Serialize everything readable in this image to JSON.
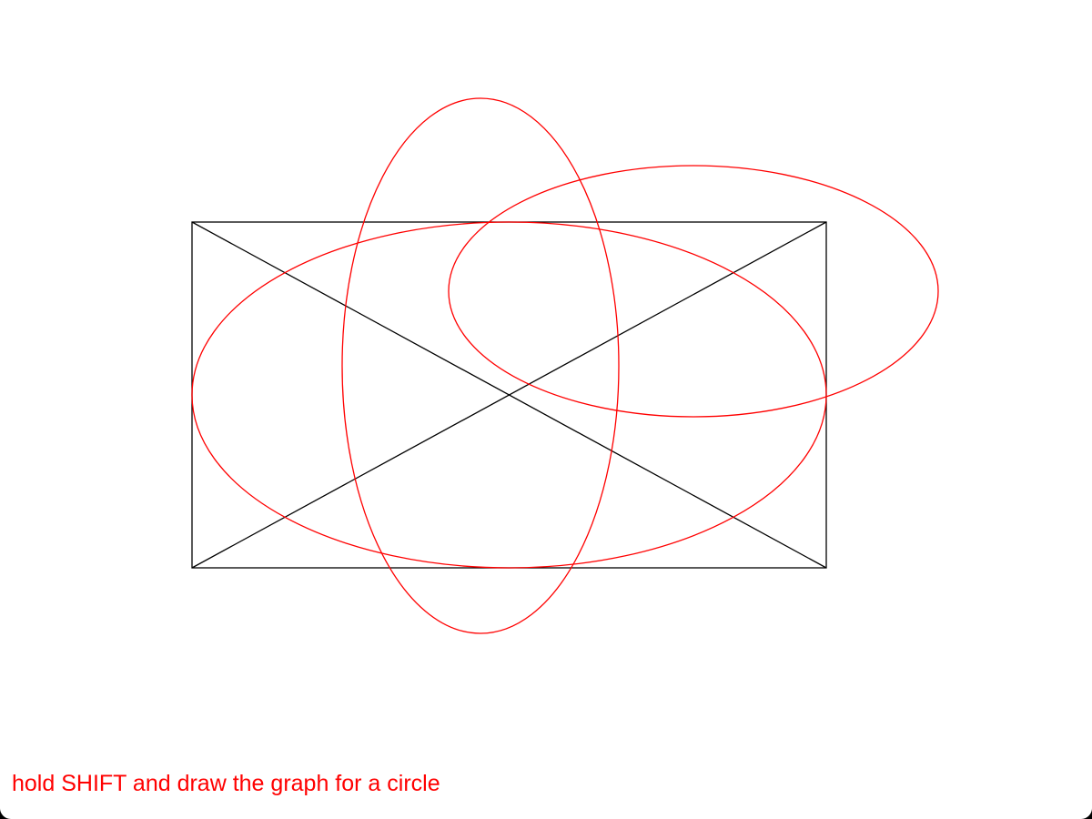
{
  "colors": {
    "background": "#ffffff",
    "guide_stroke": "#000000",
    "shape_stroke": "#ff0000",
    "hint_text": "#ff0000"
  },
  "canvas": {
    "guide": "bounding-rectangle-with-diagonals",
    "shapes": [
      "ellipse",
      "ellipse",
      "ellipse"
    ]
  },
  "hint": {
    "text": "hold SHIFT and draw the graph for a circle"
  }
}
